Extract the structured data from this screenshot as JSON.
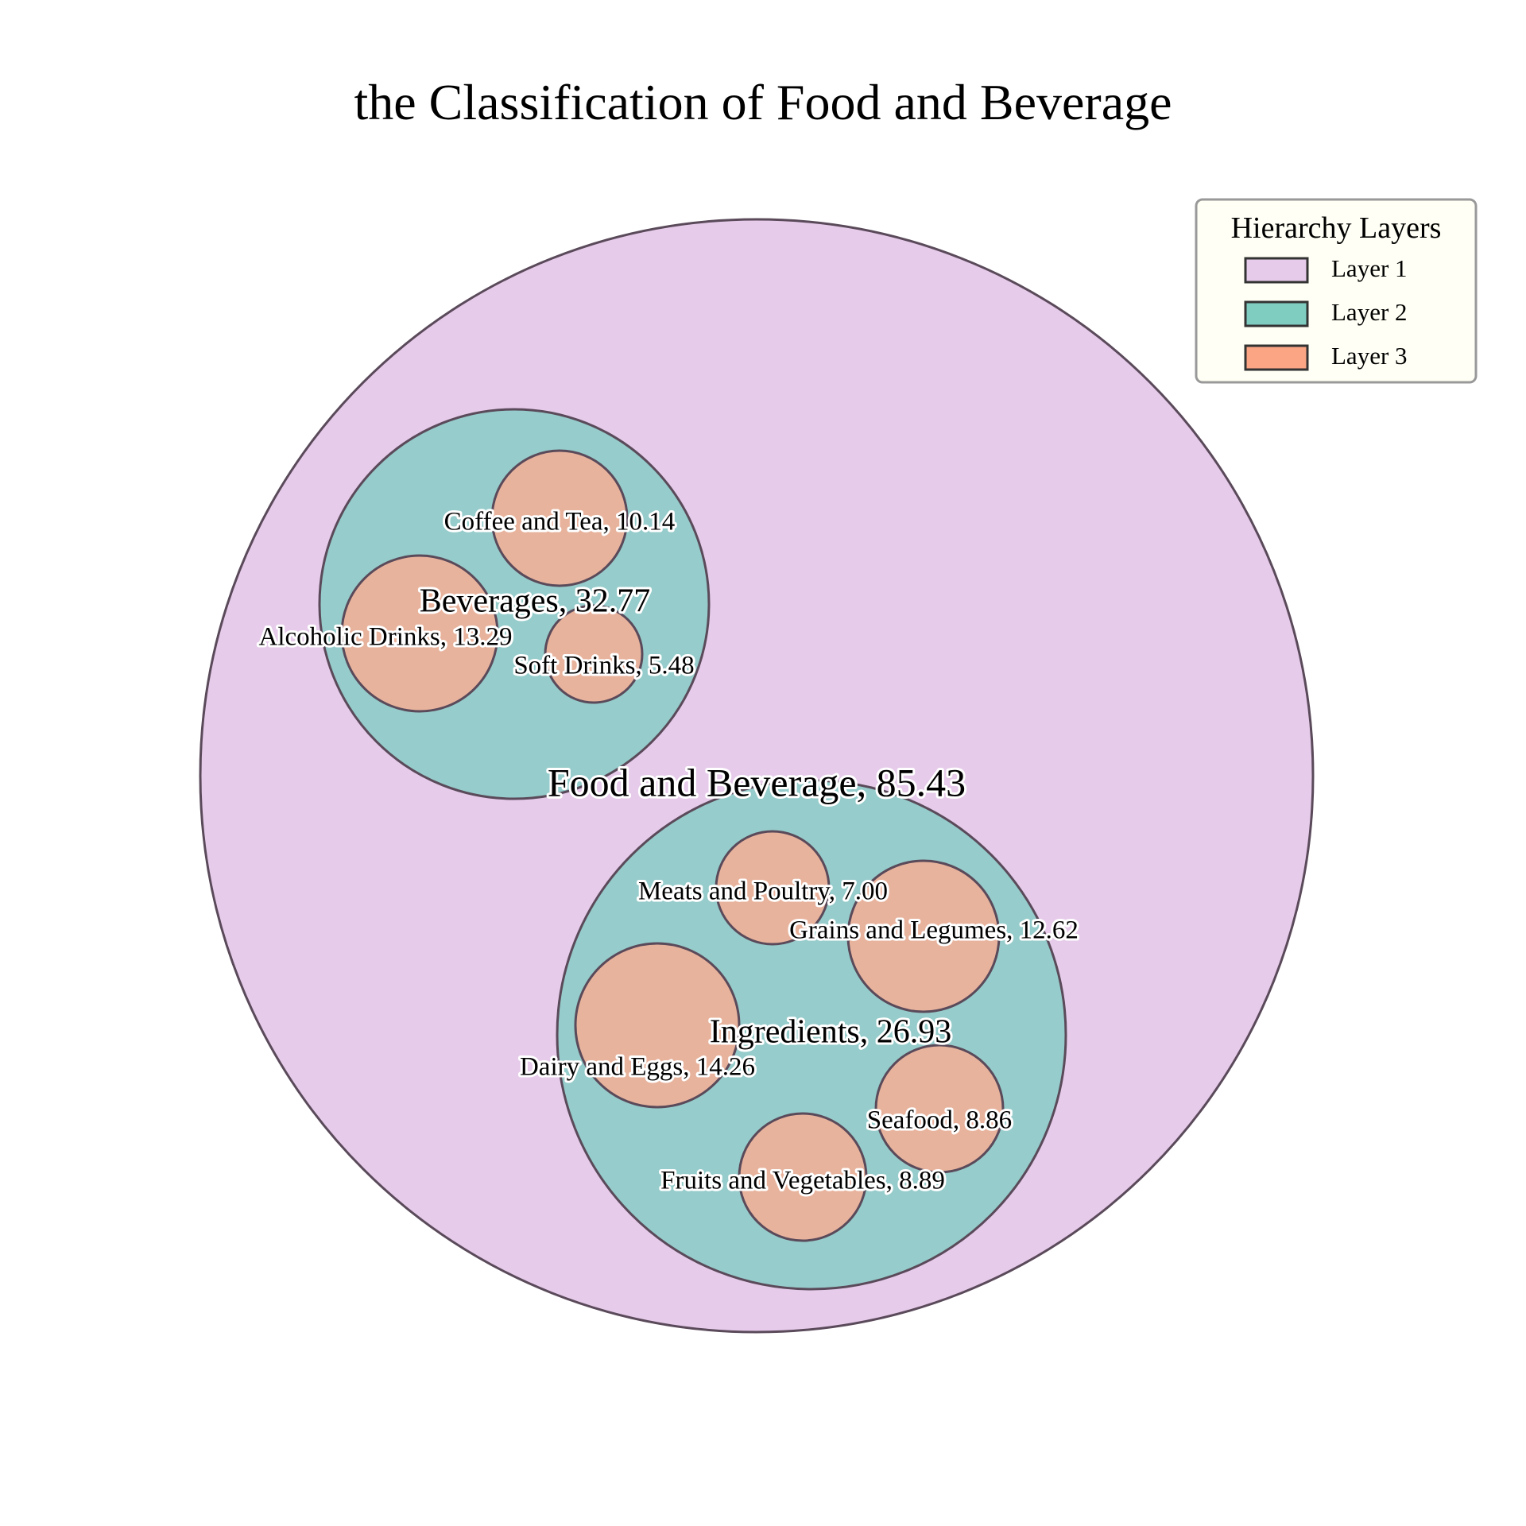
{
  "chart_data": {
    "type": "circle-packing",
    "title": "the Classification of Food and Beverage",
    "layer_colors": {
      "1": "#e6cbea",
      "2": "#96cccb",
      "3": "#e8b39d"
    },
    "legend": {
      "title": "Hierarchy Layers",
      "placement": "top-right",
      "items": [
        {
          "label": "Layer 1",
          "color": "#e6cbea"
        },
        {
          "label": "Layer 2",
          "color": "#7fcdc1"
        },
        {
          "label": "Layer 3",
          "color": "#fba584"
        }
      ]
    },
    "nodes": [
      {
        "name": "Food and Beverage",
        "value": 85.43,
        "label": "Food and Beverage, 85.43",
        "layer": 1
      },
      {
        "name": "Beverages",
        "value": 32.77,
        "label": "Beverages, 32.77",
        "layer": 2,
        "parent": "Food and Beverage"
      },
      {
        "name": "Ingredients",
        "value": 26.93,
        "label": "Ingredients, 26.93",
        "layer": 2,
        "parent": "Food and Beverage"
      },
      {
        "name": "Coffee and Tea",
        "value": 10.14,
        "label": "Coffee and Tea, 10.14",
        "layer": 3,
        "parent": "Beverages"
      },
      {
        "name": "Alcoholic Drinks",
        "value": 13.29,
        "label": "Alcoholic Drinks, 13.29",
        "layer": 3,
        "parent": "Beverages"
      },
      {
        "name": "Soft Drinks",
        "value": 5.48,
        "label": "Soft Drinks, 5.48",
        "layer": 3,
        "parent": "Beverages"
      },
      {
        "name": "Meats and Poultry",
        "value": 7.0,
        "label": "Meats and Poultry, 7.00",
        "layer": 3,
        "parent": "Ingredients"
      },
      {
        "name": "Grains and Legumes",
        "value": 12.62,
        "label": "Grains and Legumes, 12.62",
        "layer": 3,
        "parent": "Ingredients"
      },
      {
        "name": "Dairy and Eggs",
        "value": 14.26,
        "label": "Dairy and Eggs, 14.26",
        "layer": 3,
        "parent": "Ingredients"
      },
      {
        "name": "Seafood",
        "value": 8.86,
        "label": "Seafood, 8.86",
        "layer": 3,
        "parent": "Ingredients"
      },
      {
        "name": "Fruits and Vegetables",
        "value": 8.89,
        "label": "Fruits and Vegetables, 8.89",
        "layer": 3,
        "parent": "Ingredients"
      }
    ]
  }
}
